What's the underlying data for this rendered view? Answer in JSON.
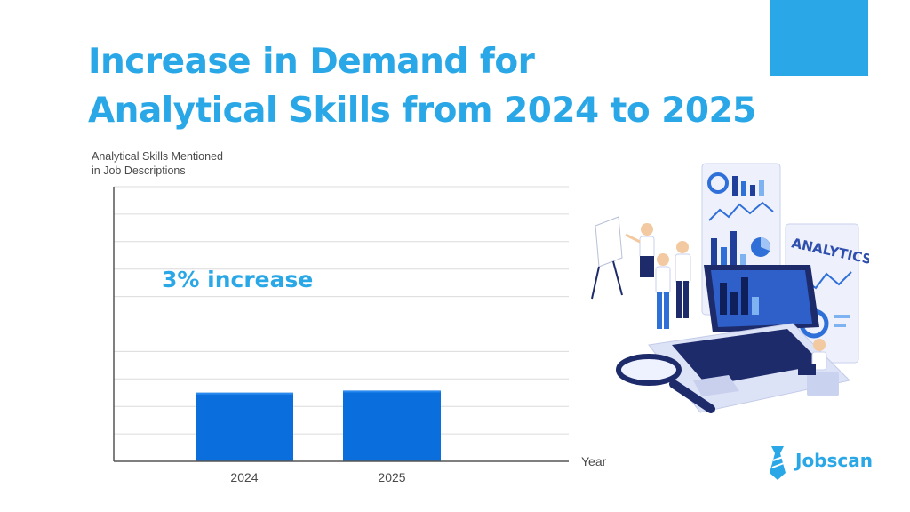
{
  "colors": {
    "accent": "#2aa7e6",
    "bar": "#0a6edc",
    "bar_top": "#2a8af0",
    "axis": "#555555",
    "grid": "#dcdcdc",
    "tick_text": "#4a4a4a"
  },
  "title": {
    "line1": "Increase in Demand for",
    "line2": "Analytical Skills from 2024 to 2025"
  },
  "illustration": {
    "label": "ANALYTICS"
  },
  "brand": {
    "name": "Jobscan",
    "icon": "tie-icon"
  },
  "chart_data": {
    "type": "bar",
    "categories": [
      "2024",
      "2025"
    ],
    "values": [
      25,
      25.75
    ],
    "xlabel": "Year",
    "ylabel_line1": "Analytical Skills Mentioned",
    "ylabel_line2": "in Job Descriptions",
    "ylim": [
      0,
      100
    ],
    "grid": true,
    "annotation": "3% increase"
  }
}
